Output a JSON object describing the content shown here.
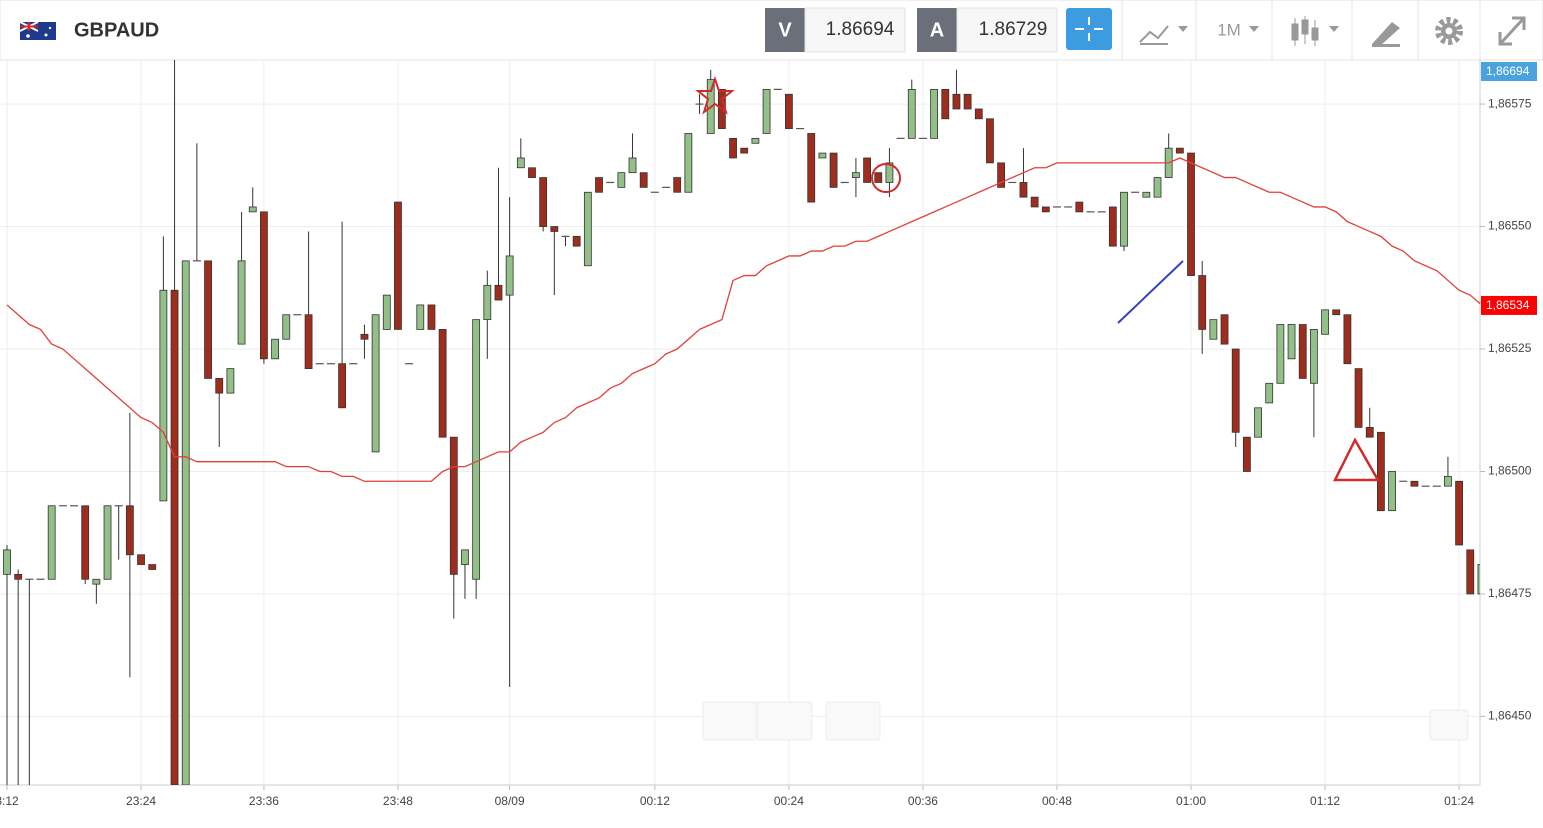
{
  "header": {
    "symbol": "GBPAUD",
    "sell_label": "V",
    "sell_price": 1.86694,
    "buy_label": "A",
    "buy_price": 1.86729,
    "timeframe": "1M"
  },
  "chart_data": {
    "type": "candlestick",
    "categories": [
      "3:12",
      null,
      null,
      null,
      null,
      null,
      null,
      null,
      null,
      null,
      null,
      null,
      "23:24",
      null,
      null,
      null,
      null,
      null,
      null,
      null,
      null,
      null,
      null,
      "23:36",
      null,
      null,
      null,
      null,
      null,
      null,
      null,
      null,
      null,
      null,
      null,
      "23:48",
      null,
      null,
      null,
      null,
      null,
      null,
      null,
      null,
      null,
      "08/09",
      null,
      null,
      null,
      null,
      null,
      null,
      null,
      null,
      null,
      null,
      null,
      null,
      "00:12",
      null,
      null,
      null,
      null,
      null,
      null,
      null,
      null,
      null,
      null,
      null,
      "00:24",
      null,
      null,
      null,
      null,
      null,
      null,
      null,
      null,
      null,
      null,
      null,
      "00:36",
      null,
      null,
      null,
      null,
      null,
      null,
      null,
      null,
      null,
      null,
      null,
      "00:48",
      null,
      null,
      null,
      null,
      null,
      null,
      null,
      null,
      null,
      null,
      null,
      "01:00",
      null,
      null,
      null,
      null,
      null,
      null,
      null,
      null,
      null,
      null,
      null,
      "01:12",
      null,
      null,
      null,
      null,
      null,
      null,
      null,
      null,
      null,
      null,
      null,
      "01:24",
      null,
      null
    ],
    "open": [
      1.86479,
      1.86479,
      1.86478,
      1.86478,
      1.86478,
      1.86493,
      1.86493,
      1.86493,
      1.86477,
      1.86478,
      1.86493,
      1.86493,
      1.86483,
      1.86481,
      1.86494,
      1.86537,
      1.86436,
      1.86543,
      1.86543,
      1.86519,
      1.86516,
      1.86526,
      1.86553,
      1.86553,
      1.86523,
      1.86527,
      1.86532,
      1.86532,
      1.86522,
      1.86522,
      1.86522,
      1.86522,
      1.86528,
      1.86504,
      1.86529,
      1.86555,
      1.86522,
      1.86529,
      1.86534,
      1.86529,
      1.86507,
      1.86481,
      1.86478,
      1.86531,
      1.86538,
      1.86536,
      1.86562,
      1.86562,
      1.8656,
      1.8655,
      1.86548,
      1.86548,
      1.86542,
      1.8656,
      1.86559,
      1.86558,
      1.86561,
      1.86561,
      1.86557,
      1.86558,
      1.8656,
      1.86557,
      1.86575,
      1.86569,
      1.86578,
      1.86568,
      1.86566,
      1.86567,
      1.86569,
      1.86578,
      1.86577,
      1.8657,
      1.86569,
      1.86564,
      1.86565,
      1.86559,
      1.8656,
      1.86564,
      1.86561,
      1.86559,
      1.86568,
      1.86568,
      1.86568,
      1.86568,
      1.86578,
      1.86577,
      1.86577,
      1.86574,
      1.86572,
      1.86563,
      1.86559,
      1.86559,
      1.86556,
      1.86554,
      1.86554,
      1.86554,
      1.86555,
      1.86553,
      1.86553,
      1.86554,
      1.86546,
      1.86557,
      1.86556,
      1.86556,
      1.8656,
      1.86566,
      1.86565,
      1.8654,
      1.86527,
      1.86532,
      1.86525,
      1.86507,
      1.86507,
      1.86514,
      1.86518,
      1.86523,
      1.8653,
      1.86518,
      1.86528,
      1.86533,
      1.86532,
      1.86521,
      1.86509,
      1.86508,
      1.86492,
      1.86498,
      1.86498,
      1.86497,
      1.86497,
      1.86497,
      1.86498,
      1.86484,
      1.86475
    ],
    "high": [
      1.86485,
      1.8648,
      1.86478,
      1.86478,
      1.86493,
      1.86493,
      1.86493,
      1.86493,
      1.86478,
      1.86493,
      1.86493,
      1.86512,
      1.86483,
      1.86481,
      1.86548,
      1.86584,
      1.86543,
      1.86567,
      1.86543,
      1.86519,
      1.86521,
      1.86553,
      1.86558,
      1.86553,
      1.86527,
      1.86532,
      1.86532,
      1.86549,
      1.86522,
      1.86522,
      1.86551,
      1.86522,
      1.8653,
      1.86532,
      1.86536,
      1.86555,
      1.86522,
      1.86534,
      1.86534,
      1.86529,
      1.86507,
      1.86484,
      1.86531,
      1.86541,
      1.86562,
      1.86556,
      1.86568,
      1.86562,
      1.8656,
      1.8655,
      1.86548,
      1.86548,
      1.86557,
      1.8656,
      1.86559,
      1.86561,
      1.86569,
      1.86561,
      1.86557,
      1.86558,
      1.8656,
      1.86569,
      1.86577,
      1.86582,
      1.86578,
      1.86568,
      1.86566,
      1.86568,
      1.86578,
      1.86578,
      1.86577,
      1.8657,
      1.86569,
      1.86565,
      1.86565,
      1.86559,
      1.86564,
      1.86564,
      1.86561,
      1.86566,
      1.86568,
      1.8658,
      1.86568,
      1.86578,
      1.86578,
      1.86582,
      1.86577,
      1.86574,
      1.86572,
      1.86563,
      1.86559,
      1.86566,
      1.86556,
      1.86554,
      1.86554,
      1.86554,
      1.86555,
      1.86553,
      1.86553,
      1.86554,
      1.86557,
      1.86557,
      1.86557,
      1.8656,
      1.86569,
      1.86566,
      1.86565,
      1.86543,
      1.86531,
      1.86532,
      1.86525,
      1.86507,
      1.86513,
      1.86518,
      1.8653,
      1.8653,
      1.8653,
      1.86529,
      1.86533,
      1.86533,
      1.86532,
      1.86521,
      1.86513,
      1.86508,
      1.865,
      1.86498,
      1.86498,
      1.86497,
      1.86497,
      1.86503,
      1.86498,
      1.86484,
      1.86481
    ],
    "low": [
      1.86436,
      1.86436,
      1.86436,
      1.86478,
      1.86478,
      1.86493,
      1.86493,
      1.86477,
      1.86473,
      1.86478,
      1.86482,
      1.86458,
      1.86481,
      1.8648,
      1.86494,
      1.86436,
      1.86436,
      1.86543,
      1.86519,
      1.86505,
      1.86516,
      1.86526,
      1.86553,
      1.86522,
      1.86523,
      1.86527,
      1.86532,
      1.86521,
      1.86522,
      1.86522,
      1.86513,
      1.86522,
      1.86523,
      1.86504,
      1.86529,
      1.86529,
      1.86522,
      1.86529,
      1.86529,
      1.86507,
      1.8647,
      1.86474,
      1.86474,
      1.86523,
      1.86535,
      1.86456,
      1.86562,
      1.8656,
      1.86549,
      1.86536,
      1.86546,
      1.86546,
      1.86542,
      1.86557,
      1.86559,
      1.86558,
      1.86561,
      1.86558,
      1.86557,
      1.86558,
      1.86557,
      1.86557,
      1.86573,
      1.86569,
      1.8657,
      1.86564,
      1.86565,
      1.86567,
      1.86569,
      1.86578,
      1.8657,
      1.8657,
      1.86555,
      1.86564,
      1.86558,
      1.86559,
      1.86556,
      1.86559,
      1.86559,
      1.86556,
      1.86568,
      1.86568,
      1.86568,
      1.86568,
      1.86572,
      1.86574,
      1.86574,
      1.86572,
      1.86563,
      1.86558,
      1.86559,
      1.86556,
      1.86554,
      1.86553,
      1.86554,
      1.86554,
      1.86553,
      1.86553,
      1.86553,
      1.86546,
      1.86545,
      1.86557,
      1.86556,
      1.86556,
      1.8656,
      1.86565,
      1.8654,
      1.86524,
      1.86527,
      1.86526,
      1.86505,
      1.865,
      1.86507,
      1.86514,
      1.86518,
      1.86523,
      1.86519,
      1.86507,
      1.86528,
      1.86532,
      1.86522,
      1.86509,
      1.86507,
      1.86492,
      1.86492,
      1.86498,
      1.86497,
      1.86497,
      1.86497,
      1.86497,
      1.86485,
      1.86475,
      1.86475
    ],
    "close": [
      1.86484,
      1.86478,
      1.86478,
      1.86478,
      1.86493,
      1.86493,
      1.86493,
      1.86478,
      1.86478,
      1.86493,
      1.86493,
      1.86483,
      1.86481,
      1.8648,
      1.86537,
      1.86436,
      1.86543,
      1.86543,
      1.86519,
      1.86516,
      1.86521,
      1.86543,
      1.86554,
      1.86523,
      1.86527,
      1.86532,
      1.86532,
      1.86521,
      1.86522,
      1.86522,
      1.86513,
      1.86522,
      1.86527,
      1.86532,
      1.86536,
      1.86529,
      1.86522,
      1.86534,
      1.86529,
      1.86507,
      1.86479,
      1.86484,
      1.86531,
      1.86538,
      1.86535,
      1.86544,
      1.86564,
      1.8656,
      1.8655,
      1.86549,
      1.86548,
      1.86546,
      1.86557,
      1.86557,
      1.86559,
      1.86561,
      1.86564,
      1.86558,
      1.86557,
      1.86558,
      1.86557,
      1.86569,
      1.86575,
      1.8658,
      1.8657,
      1.86564,
      1.86565,
      1.86568,
      1.86578,
      1.86578,
      1.8657,
      1.8657,
      1.86555,
      1.86565,
      1.86558,
      1.86559,
      1.86561,
      1.86559,
      1.86559,
      1.86563,
      1.86568,
      1.86578,
      1.86568,
      1.86578,
      1.86572,
      1.86574,
      1.86574,
      1.86572,
      1.86563,
      1.86558,
      1.86559,
      1.86556,
      1.86554,
      1.86553,
      1.86554,
      1.86554,
      1.86553,
      1.86553,
      1.86553,
      1.86546,
      1.86557,
      1.86557,
      1.86557,
      1.8656,
      1.86566,
      1.86565,
      1.8654,
      1.86529,
      1.86531,
      1.86526,
      1.86508,
      1.865,
      1.86513,
      1.86518,
      1.8653,
      1.8653,
      1.86519,
      1.86529,
      1.86533,
      1.86532,
      1.86522,
      1.86509,
      1.86507,
      1.86492,
      1.865,
      1.86498,
      1.86497,
      1.86497,
      1.86497,
      1.86499,
      1.86485,
      1.86475,
      1.86481
    ],
    "up_color": "#93bf88",
    "down_color": "#9e2d1e",
    "flat_color": "#555555",
    "overlay": {
      "color": "#e0403a",
      "values": [
        1.86534,
        1.86532,
        1.8653,
        1.86529,
        1.86526,
        1.86525,
        1.86523,
        1.86521,
        1.86519,
        1.86517,
        1.86515,
        1.86513,
        1.86511,
        1.8651,
        1.86508,
        1.86503,
        1.86503,
        1.86502,
        1.86502,
        1.86502,
        1.86502,
        1.86502,
        1.86502,
        1.86502,
        1.86502,
        1.86501,
        1.86501,
        1.86501,
        1.865,
        1.865,
        1.86499,
        1.86499,
        1.86498,
        1.86498,
        1.86498,
        1.86498,
        1.86498,
        1.86498,
        1.86498,
        1.865,
        1.86501,
        1.86501,
        1.86502,
        1.86503,
        1.86504,
        1.86504,
        1.86506,
        1.86507,
        1.86508,
        1.8651,
        1.86511,
        1.86513,
        1.86514,
        1.86515,
        1.86517,
        1.86518,
        1.8652,
        1.86521,
        1.86522,
        1.86524,
        1.86525,
        1.86527,
        1.86529,
        1.8653,
        1.86531,
        1.86539,
        1.8654,
        1.8654,
        1.86542,
        1.86543,
        1.86544,
        1.86544,
        1.86545,
        1.86545,
        1.86546,
        1.86546,
        1.86547,
        1.86547,
        1.86548,
        1.86549,
        1.8655,
        1.86551,
        1.86552,
        1.86553,
        1.86554,
        1.86555,
        1.86556,
        1.86557,
        1.86558,
        1.86559,
        1.8656,
        1.86561,
        1.86562,
        1.86562,
        1.86563,
        1.86563,
        1.86563,
        1.86563,
        1.86563,
        1.86563,
        1.86563,
        1.86563,
        1.86563,
        1.86563,
        1.86563,
        1.86564,
        1.86563,
        1.86562,
        1.86561,
        1.8656,
        1.8656,
        1.86559,
        1.86558,
        1.86557,
        1.86557,
        1.86556,
        1.86555,
        1.86554,
        1.86554,
        1.86553,
        1.86551,
        1.8655,
        1.86549,
        1.86548,
        1.86546,
        1.86545,
        1.86543,
        1.86542,
        1.86541,
        1.86539,
        1.86537,
        1.86536,
        1.86534
      ],
      "tag": "1,86534"
    },
    "last_price_tag": "1,86694",
    "ylim": [
      1.86436,
      1.86584
    ],
    "yticks": [
      {
        "value": 1.8645,
        "label": "1,86450"
      },
      {
        "value": 1.86475,
        "label": "1,86475"
      },
      {
        "value": 1.865,
        "label": "1,86500"
      },
      {
        "value": 1.86525,
        "label": "1,86525"
      },
      {
        "value": 1.8655,
        "label": "1,86550"
      },
      {
        "value": 1.86575,
        "label": "1,86575"
      }
    ],
    "grid": true
  }
}
